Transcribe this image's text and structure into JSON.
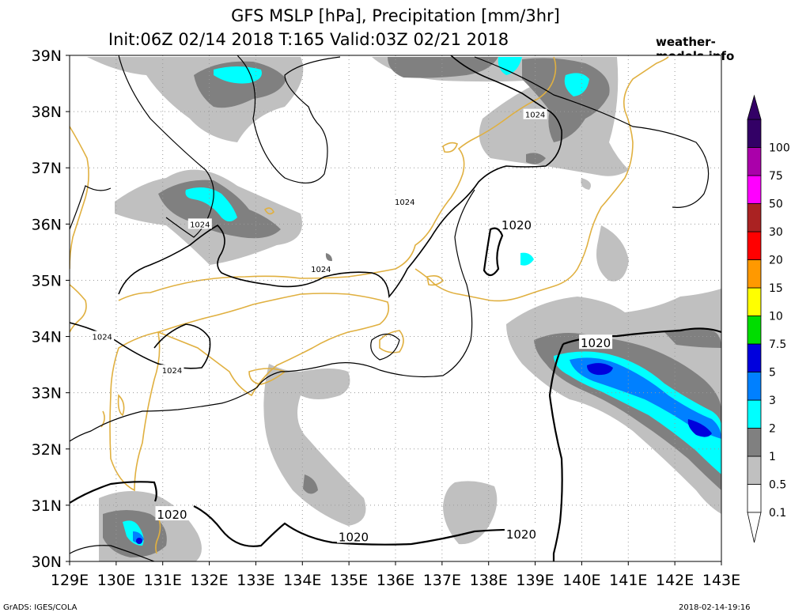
{
  "header": {
    "title_line1": "GFS MSLP [hPa], Precipitation [mm/3hr]",
    "title_line2": "Init:06Z 02/14 2018 T:165 Valid:03Z 02/21 2018",
    "site": "weather-models.info"
  },
  "footer": {
    "left": "GrADS: IGES/COLA",
    "right": "2018-02-14-19:16"
  },
  "colors": {
    "coastline": "#e0b040",
    "grid": "#999999",
    "isobar": "#000000",
    "precip_0_1": "#c0c0c0",
    "precip_0_5": "#808080",
    "precip_1": "#00ffff",
    "precip_2": "#0080ff",
    "precip_3": "#0000dd"
  },
  "chart_data": {
    "type": "map",
    "title": "GFS MSLP [hPa], Precipitation [mm/3hr]",
    "subtitle": "Init:06Z 02/14 2018 T:165 Valid:03Z 02/21 2018",
    "lon_range": [
      129,
      143
    ],
    "lat_range": [
      30,
      39
    ],
    "grid": true,
    "x_ticks": [
      "129E",
      "130E",
      "131E",
      "132E",
      "133E",
      "134E",
      "135E",
      "136E",
      "137E",
      "138E",
      "139E",
      "140E",
      "141E",
      "142E",
      "143E"
    ],
    "y_ticks": [
      "30N",
      "31N",
      "32N",
      "33N",
      "34N",
      "35N",
      "36N",
      "37N",
      "38N",
      "39N"
    ],
    "isobar_labels": [
      {
        "text": "1024",
        "lon": 139.0,
        "lat": 37.95
      },
      {
        "text": "1024",
        "lon": 136.2,
        "lat": 36.4
      },
      {
        "text": "1024",
        "lon": 131.8,
        "lat": 36.0
      },
      {
        "text": "1024",
        "lon": 134.4,
        "lat": 35.2
      },
      {
        "text": "1024",
        "lon": 129.7,
        "lat": 34.0
      },
      {
        "text": "1024",
        "lon": 131.2,
        "lat": 33.4
      },
      {
        "text": "1020",
        "lon": 138.6,
        "lat": 36.0
      },
      {
        "text": "1020",
        "lon": 140.3,
        "lat": 33.9
      },
      {
        "text": "1020",
        "lon": 131.2,
        "lat": 30.85
      },
      {
        "text": "1020",
        "lon": 135.1,
        "lat": 30.45
      },
      {
        "text": "1020",
        "lon": 138.7,
        "lat": 30.5
      }
    ],
    "legend": {
      "position": "right",
      "levels": [
        "0.1",
        "0.5",
        "1",
        "2",
        "3",
        "5",
        "7.5",
        "10",
        "15",
        "20",
        "30",
        "50",
        "75",
        "100"
      ],
      "colors": [
        "#ffffff",
        "#c0c0c0",
        "#808080",
        "#00ffff",
        "#0080ff",
        "#0000dd",
        "#00dd00",
        "#ffff00",
        "#ff9900",
        "#ff0000",
        "#aa2222",
        "#ff00ff",
        "#aa00aa",
        "#330066"
      ]
    }
  }
}
